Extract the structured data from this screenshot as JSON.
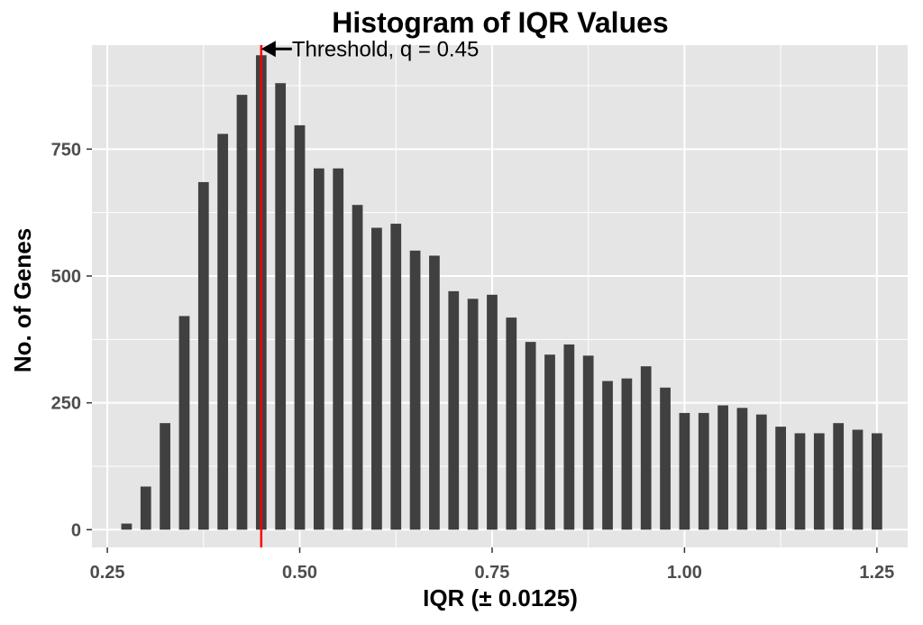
{
  "chart_data": {
    "type": "bar",
    "title": "Histogram of IQR Values",
    "xlabel": "IQR (± 0.0125)",
    "ylabel": "No. of Genes",
    "xlim": [
      0.23,
      1.29
    ],
    "ylim": [
      -35,
      955
    ],
    "x_ticks": [
      0.25,
      0.5,
      0.75,
      1.0,
      1.25
    ],
    "x_tick_labels": [
      "0.25",
      "0.50",
      "0.75",
      "1.00",
      "1.25"
    ],
    "y_ticks": [
      0,
      250,
      500,
      750
    ],
    "y_tick_labels": [
      "0",
      "250",
      "500",
      "750"
    ],
    "bin_width": 0.025,
    "bar_width_fraction": 0.55,
    "x": [
      0.275,
      0.3,
      0.325,
      0.35,
      0.375,
      0.4,
      0.425,
      0.45,
      0.475,
      0.5,
      0.525,
      0.55,
      0.575,
      0.6,
      0.625,
      0.65,
      0.675,
      0.7,
      0.725,
      0.75,
      0.775,
      0.8,
      0.825,
      0.85,
      0.875,
      0.9,
      0.925,
      0.95,
      0.975,
      1.0,
      1.025,
      1.05,
      1.075,
      1.1,
      1.125,
      1.15,
      1.175,
      1.2,
      1.225,
      1.25
    ],
    "values": [
      12,
      85,
      210,
      421,
      685,
      780,
      857,
      935,
      880,
      797,
      712,
      712,
      640,
      595,
      603,
      550,
      540,
      470,
      455,
      463,
      418,
      370,
      345,
      365,
      343,
      293,
      298,
      322,
      280,
      230,
      230,
      245,
      240,
      227,
      203,
      190,
      190,
      210,
      197,
      190
    ],
    "bar_color": "#404040",
    "panel_background": "#e5e5e5",
    "grid": true,
    "grid_color": "#ffffff",
    "threshold": {
      "value": 0.45,
      "color": "#ff0000",
      "label": "Threshold, q = 0.45"
    }
  }
}
